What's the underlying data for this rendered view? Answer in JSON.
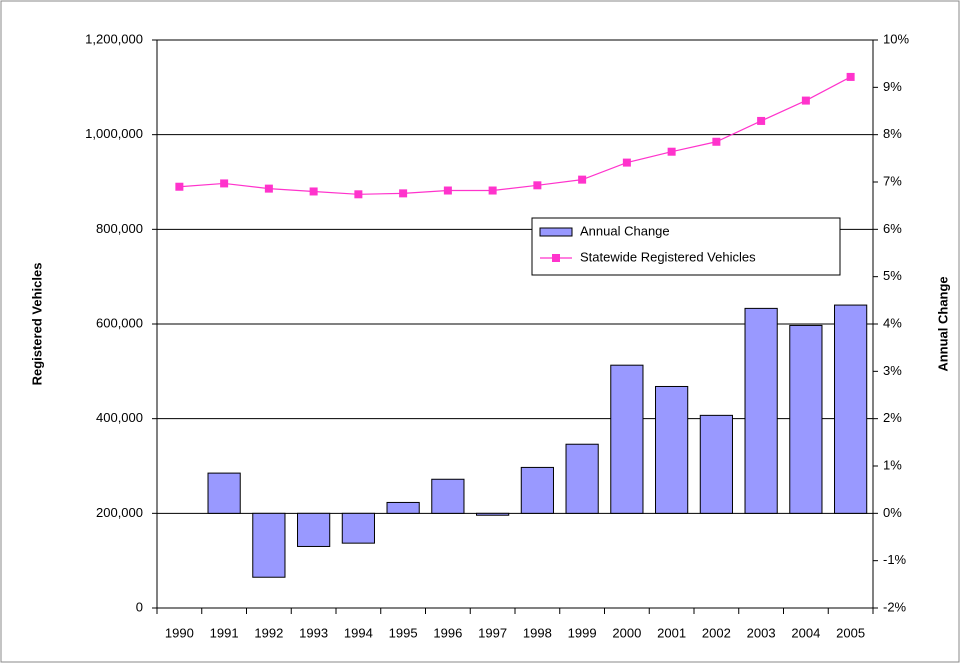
{
  "chart_data": {
    "type": "combo",
    "y_label": "Registered Vehicles",
    "y2_label": "Annual Change",
    "categories": [
      "1990",
      "1991",
      "1992",
      "1993",
      "1994",
      "1995",
      "1996",
      "1997",
      "1998",
      "1999",
      "2000",
      "2001",
      "2002",
      "2003",
      "2004",
      "2005"
    ],
    "series": [
      {
        "name": "Annual Change",
        "type": "bar",
        "axis": "y2",
        "color": "#9999ff",
        "values": [
          null,
          0.85,
          -1.35,
          -0.7,
          -0.63,
          0.23,
          0.72,
          -0.04,
          0.97,
          1.46,
          3.13,
          2.68,
          2.07,
          4.33,
          3.97,
          4.4
        ]
      },
      {
        "name": "Statewide Registered Vehicles",
        "type": "line",
        "color": "#ff33cc",
        "values": [
          890000,
          897000,
          886000,
          880000,
          874000,
          876000,
          882000,
          882000,
          893000,
          905000,
          941000,
          964000,
          985000,
          1029000,
          1072000,
          1122000
        ]
      }
    ],
    "ylim": [
      0,
      1200000
    ],
    "yticks": [
      0,
      {
        "value": 200000,
        "label": "200,000"
      },
      {
        "value": 400000,
        "label": "400,000"
      },
      {
        "value": 600000,
        "label": "600,000"
      },
      {
        "value": 800000,
        "label": "800,000"
      },
      {
        "value": 1000000,
        "label": "1,000,000"
      },
      {
        "value": 1200000,
        "label": "1,200,000"
      }
    ],
    "y2lim": [
      -2,
      10
    ],
    "y2ticks": [
      {
        "value": -2,
        "label": "-2%"
      },
      {
        "value": -1,
        "label": "-1%"
      },
      {
        "value": 0,
        "label": "0%"
      },
      {
        "value": 1,
        "label": "1%"
      },
      {
        "value": 2,
        "label": "2%"
      },
      {
        "value": 3,
        "label": "3%"
      },
      {
        "value": 4,
        "label": "4%"
      },
      {
        "value": 5,
        "label": "5%"
      },
      {
        "value": 6,
        "label": "6%"
      },
      {
        "value": 7,
        "label": "7%"
      },
      {
        "value": 8,
        "label": "8%"
      },
      {
        "value": 9,
        "label": "9%"
      },
      {
        "value": 10,
        "label": "10%"
      }
    ],
    "grid": true
  }
}
